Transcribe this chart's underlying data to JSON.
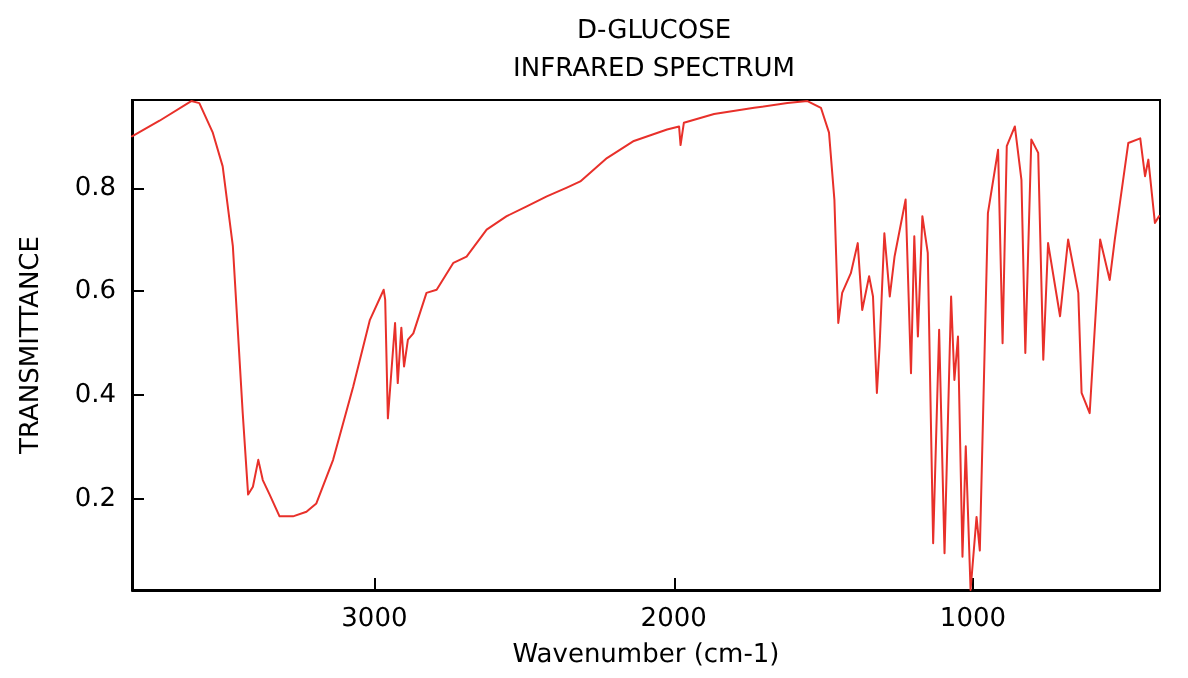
{
  "chart_data": {
    "type": "line",
    "title": "D-GLUCOSE",
    "subtitle": "INFRARED SPECTRUM",
    "xlabel": "Wavenumber (cm-1)",
    "ylabel": "TRANSMITTANCE",
    "xlim": [
      3810,
      375
    ],
    "ylim": [
      0.024,
      0.969
    ],
    "xticks": [
      3000,
      2000,
      1000
    ],
    "yticks": [
      0.2,
      0.4,
      0.6,
      0.8
    ],
    "grid": false,
    "marker": "none",
    "line_style": "solid",
    "series": [
      {
        "color": "#e8302a",
        "x": [
          3810,
          3718,
          3612,
          3585,
          3540,
          3507,
          3473,
          3440,
          3422,
          3406,
          3388,
          3373,
          3350,
          3317,
          3272,
          3227,
          3194,
          3138,
          3071,
          3015,
          2969,
          2964,
          2955,
          2942,
          2931,
          2922,
          2910,
          2901,
          2888,
          2870,
          2826,
          2792,
          2736,
          2692,
          2625,
          2558,
          2491,
          2424,
          2357,
          2312,
          2223,
          2133,
          2022,
          1982,
          1977,
          1966,
          1865,
          1731,
          1620,
          1553,
          1508,
          1481,
          1463,
          1450,
          1437,
          1408,
          1385,
          1370,
          1347,
          1334,
          1321,
          1312,
          1296,
          1278,
          1262,
          1225,
          1207,
          1196,
          1184,
          1169,
          1151,
          1133,
          1113,
          1095,
          1073,
          1062,
          1050,
          1035,
          1024,
          1008,
          988,
          977,
          950,
          916,
          901,
          887,
          860,
          838,
          825,
          805,
          782,
          765,
          749,
          709,
          682,
          648,
          637,
          610,
          575,
          543,
          526,
          481,
          441,
          425,
          414,
          392,
          378
        ],
        "values": [
          0.899,
          0.929,
          0.967,
          0.963,
          0.906,
          0.841,
          0.687,
          0.365,
          0.208,
          0.223,
          0.275,
          0.236,
          0.208,
          0.166,
          0.166,
          0.175,
          0.191,
          0.275,
          0.416,
          0.545,
          0.603,
          0.584,
          0.355,
          0.455,
          0.539,
          0.423,
          0.53,
          0.455,
          0.507,
          0.519,
          0.597,
          0.603,
          0.655,
          0.667,
          0.719,
          0.745,
          0.764,
          0.783,
          0.8,
          0.812,
          0.857,
          0.89,
          0.912,
          0.918,
          0.882,
          0.925,
          0.942,
          0.954,
          0.963,
          0.967,
          0.954,
          0.906,
          0.777,
          0.539,
          0.597,
          0.635,
          0.693,
          0.564,
          0.629,
          0.59,
          0.404,
          0.494,
          0.712,
          0.59,
          0.667,
          0.777,
          0.442,
          0.706,
          0.513,
          0.745,
          0.674,
          0.114,
          0.526,
          0.095,
          0.59,
          0.429,
          0.513,
          0.088,
          0.301,
          0.024,
          0.165,
          0.1,
          0.751,
          0.873,
          0.5,
          0.88,
          0.918,
          0.815,
          0.481,
          0.893,
          0.867,
          0.468,
          0.693,
          0.552,
          0.7,
          0.597,
          0.404,
          0.365,
          0.7,
          0.622,
          0.7,
          0.886,
          0.895,
          0.822,
          0.854,
          0.732,
          0.745
        ]
      }
    ]
  }
}
